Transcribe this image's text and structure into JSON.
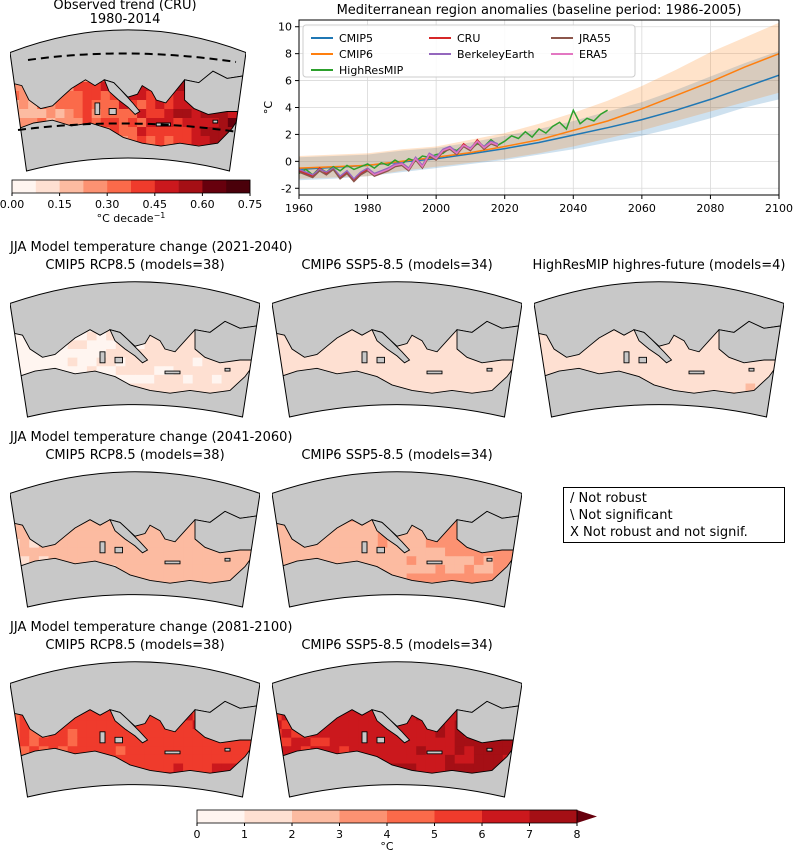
{
  "obs_panel": {
    "title_line1": "Observed trend (CRU)",
    "title_line2": "1980-2014",
    "colorbar": {
      "ticks": [
        "0.00",
        "0.15",
        "0.30",
        "0.45",
        "0.60",
        "0.75"
      ],
      "label_prefix": "°C decade",
      "label_exp": "−1",
      "colors": [
        "#fff5f0",
        "#fee0d2",
        "#fcbba1",
        "#fc9272",
        "#fb6a4a",
        "#ef3b2c",
        "#cb181d",
        "#a50f15",
        "#67000d",
        "#4a000a"
      ]
    }
  },
  "chart_data": {
    "type": "line",
    "title": "Mediterranean region anomalies (baseline period: 1986-2005)",
    "xlabel": "",
    "ylabel": "°C",
    "xlim": [
      1960,
      2100
    ],
    "ylim": [
      -2.5,
      10.5
    ],
    "xticks": [
      "1960",
      "1980",
      "2000",
      "2020",
      "2040",
      "2060",
      "2080",
      "2100"
    ],
    "yticks": [
      "-2",
      "0",
      "2",
      "4",
      "6",
      "8",
      "10"
    ],
    "grid": true,
    "legend_position": "top-left",
    "series": [
      {
        "name": "CMIP5",
        "color": "#1f77b4",
        "x": [
          1960,
          1970,
          1980,
          1990,
          2000,
          2010,
          2020,
          2030,
          2040,
          2050,
          2060,
          2070,
          2080,
          2090,
          2100
        ],
        "y": [
          -0.6,
          -0.45,
          -0.3,
          -0.05,
          0.2,
          0.55,
          0.95,
          1.4,
          1.95,
          2.5,
          3.1,
          3.8,
          4.6,
          5.5,
          6.4
        ],
        "lo": [
          -1.4,
          -1.3,
          -1.1,
          -0.8,
          -0.5,
          -0.2,
          0.1,
          0.5,
          0.9,
          1.4,
          1.9,
          2.5,
          3.2,
          4.0,
          4.6
        ],
        "hi": [
          0.3,
          0.4,
          0.5,
          0.8,
          1.0,
          1.4,
          1.9,
          2.4,
          3.0,
          3.7,
          4.4,
          5.3,
          6.3,
          7.3,
          8.2
        ]
      },
      {
        "name": "CMIP6",
        "color": "#ff7f0e",
        "x": [
          1960,
          1970,
          1980,
          1990,
          2000,
          2010,
          2020,
          2030,
          2040,
          2050,
          2060,
          2070,
          2080,
          2090,
          2100
        ],
        "y": [
          -0.5,
          -0.4,
          -0.3,
          0.0,
          0.3,
          0.65,
          1.1,
          1.6,
          2.3,
          3.0,
          3.9,
          4.9,
          5.9,
          7.0,
          8.0
        ],
        "lo": [
          -1.3,
          -1.2,
          -1.1,
          -0.7,
          -0.4,
          -0.1,
          0.2,
          0.6,
          1.1,
          1.7,
          2.3,
          3.0,
          3.7,
          4.4,
          5.1
        ],
        "hi": [
          0.4,
          0.5,
          0.6,
          0.9,
          1.1,
          1.6,
          2.1,
          2.8,
          3.6,
          4.5,
          5.6,
          6.8,
          8.1,
          9.2,
          10.3
        ]
      },
      {
        "name": "HighResMIP",
        "color": "#2ca02c",
        "x": [
          1960,
          1962,
          1964,
          1966,
          1968,
          1970,
          1972,
          1974,
          1976,
          1978,
          1980,
          1982,
          1984,
          1986,
          1988,
          1990,
          1992,
          1994,
          1996,
          1998,
          2000,
          2002,
          2004,
          2006,
          2008,
          2010,
          2012,
          2014,
          2016,
          2018,
          2020,
          2022,
          2024,
          2026,
          2028,
          2030,
          2032,
          2034,
          2036,
          2038,
          2040,
          2042,
          2044,
          2046,
          2048,
          2050
        ],
        "y": [
          -0.9,
          -0.6,
          -1.0,
          -0.5,
          -0.8,
          -0.4,
          -0.7,
          -0.3,
          -0.6,
          -0.4,
          -0.2,
          -0.5,
          -0.1,
          -0.3,
          0.1,
          -0.2,
          0.2,
          0.0,
          0.4,
          0.3,
          0.5,
          0.6,
          1.0,
          0.8,
          1.2,
          0.9,
          1.3,
          1.1,
          1.6,
          1.2,
          1.5,
          1.9,
          1.7,
          2.2,
          1.8,
          2.4,
          2.1,
          2.6,
          2.9,
          2.4,
          3.8,
          2.8,
          3.2,
          3.0,
          3.5,
          3.8
        ]
      },
      {
        "name": "CRU",
        "color": "#d62728",
        "x": [
          1960,
          1962,
          1964,
          1966,
          1968,
          1970,
          1972,
          1974,
          1976,
          1978,
          1980,
          1982,
          1984,
          1986,
          1988,
          1990,
          1992,
          1994,
          1996,
          1998,
          2000,
          2002,
          2004,
          2006,
          2008,
          2010,
          2012,
          2014,
          2016,
          2018
        ],
        "y": [
          -0.7,
          -0.9,
          -1.1,
          -0.5,
          -0.9,
          -0.6,
          -1.2,
          -0.8,
          -1.4,
          -0.9,
          -0.6,
          -1.0,
          -0.8,
          -0.6,
          -0.3,
          -0.2,
          -0.6,
          0.2,
          -0.4,
          0.5,
          0.2,
          0.8,
          1.0,
          0.6,
          1.3,
          0.9,
          1.6,
          1.0,
          1.4,
          1.2
        ]
      },
      {
        "name": "BerkeleyEarth",
        "color": "#9467bd",
        "x": [
          1960,
          1962,
          1964,
          1966,
          1968,
          1970,
          1972,
          1974,
          1976,
          1978,
          1980,
          1982,
          1984,
          1986,
          1988,
          1990,
          1992,
          1994,
          1996,
          1998,
          2000,
          2002,
          2004,
          2006,
          2008,
          2010,
          2012,
          2014,
          2016,
          2018
        ],
        "y": [
          -0.6,
          -0.8,
          -1.0,
          -0.6,
          -0.8,
          -0.5,
          -1.1,
          -0.7,
          -1.3,
          -0.8,
          -0.5,
          -0.9,
          -0.7,
          -0.5,
          -0.2,
          -0.1,
          -0.5,
          0.3,
          -0.3,
          0.6,
          0.3,
          0.9,
          1.1,
          0.7,
          1.2,
          1.0,
          1.5,
          1.1,
          1.5,
          1.3
        ]
      },
      {
        "name": "JRA55",
        "color": "#8c564b",
        "x": [
          1960,
          1962,
          1964,
          1966,
          1968,
          1970,
          1972,
          1974,
          1976,
          1978,
          1980,
          1982,
          1984,
          1986,
          1988,
          1990,
          1992,
          1994,
          1996,
          1998,
          2000,
          2002,
          2004,
          2006,
          2008,
          2010,
          2012,
          2014,
          2016,
          2018
        ],
        "y": [
          -0.8,
          -1.0,
          -1.2,
          -0.7,
          -1.0,
          -0.6,
          -1.3,
          -0.9,
          -1.5,
          -1.0,
          -0.7,
          -1.1,
          -0.9,
          -0.7,
          -0.4,
          -0.3,
          -0.7,
          0.1,
          -0.5,
          0.4,
          0.1,
          0.7,
          0.9,
          0.5,
          1.1,
          0.8,
          1.4,
          0.9,
          1.3,
          1.1
        ]
      },
      {
        "name": "ERA5",
        "color": "#e377c2",
        "x": [
          1980,
          1982,
          1984,
          1986,
          1988,
          1990,
          1992,
          1994,
          1996,
          1998,
          2000,
          2002,
          2004,
          2006,
          2008,
          2010,
          2012,
          2014,
          2016,
          2018
        ],
        "y": [
          -0.6,
          -1.0,
          -0.8,
          -0.6,
          -0.3,
          -0.2,
          -0.6,
          0.2,
          -0.4,
          0.5,
          0.2,
          0.8,
          1.0,
          0.6,
          1.2,
          0.9,
          1.5,
          1.0,
          1.4,
          1.2
        ]
      }
    ]
  },
  "sections": [
    {
      "title": "JJA Model temperature change (2021-2040)",
      "maps": [
        {
          "title": "CMIP5 RCP8.5 (models=38)",
          "level": 1.0,
          "var": 0.25
        },
        {
          "title": "CMIP6 SSP5-8.5 (models=34)",
          "level": 1.3,
          "var": 0.25
        },
        {
          "title": "HighResMIP highres-future (models=4)",
          "level": 1.6,
          "var": 0.35
        }
      ]
    },
    {
      "title": "JJA Model temperature change (2041-2060)",
      "maps": [
        {
          "title": "CMIP5 RCP8.5 (models=38)",
          "level": 2.3,
          "var": 0.45
        },
        {
          "title": "CMIP6 SSP5-8.5 (models=34)",
          "level": 2.8,
          "var": 0.5
        }
      ]
    },
    {
      "title": "JJA Model temperature change (2081-2100)",
      "maps": [
        {
          "title": "CMIP5 RCP8.5 (models=38)",
          "level": 5.4,
          "var": 0.7
        },
        {
          "title": "CMIP6 SSP5-8.5 (models=34)",
          "level": 6.6,
          "var": 0.9
        }
      ]
    }
  ],
  "hatch_legend": {
    "items": [
      "/ Not robust",
      "\\ Not significant",
      "X Not robust and not signif."
    ]
  },
  "bottom_colorbar": {
    "ticks": [
      "0",
      "1",
      "2",
      "3",
      "4",
      "5",
      "6",
      "7",
      "8"
    ],
    "label": "°C",
    "colors": [
      "#fff5f0",
      "#fee0d2",
      "#fcbba1",
      "#fc9272",
      "#fb6a4a",
      "#ef3b2c",
      "#cb181d",
      "#a50f15"
    ],
    "extend_color": "#67000d"
  },
  "colors": {
    "land": "#c8c8c8",
    "coast": "#000000",
    "dashed_region": "#000000"
  }
}
